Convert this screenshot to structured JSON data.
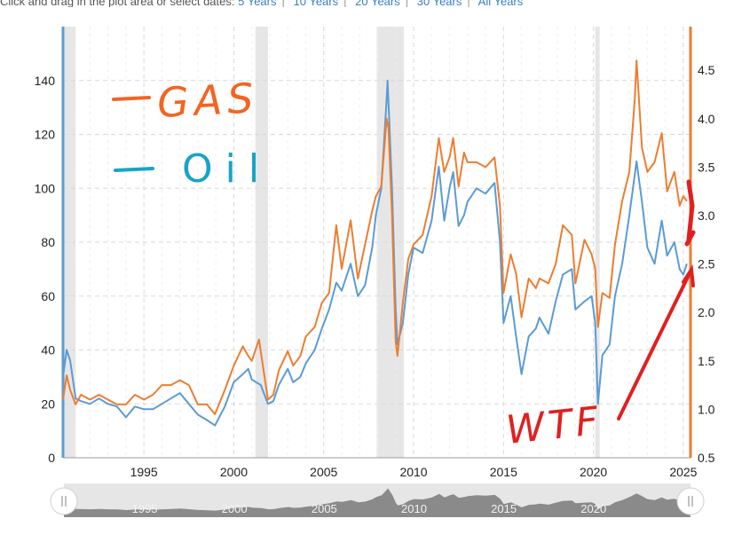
{
  "top_bar": {
    "instruction": "Click and drag in the plot area or select dates:",
    "ranges": [
      "5 Years",
      "10 Years",
      "20 Years",
      "30 Years",
      "All Years"
    ]
  },
  "annotations": {
    "gas_label": "GAS",
    "oil_label": "Oil",
    "wtf_label": "WTF",
    "gas_color": "#f26522",
    "oil_color": "#1aa3c6",
    "wtf_color": "#e02020"
  },
  "chart_data": {
    "type": "line",
    "title": "",
    "x_range": [
      1990.5,
      2025.4
    ],
    "left_axis": {
      "ticks": [
        0,
        20,
        40,
        60,
        80,
        100,
        120,
        140
      ],
      "range": [
        0,
        160
      ]
    },
    "right_axis": {
      "ticks": [
        0.5,
        1.0,
        1.5,
        2.0,
        2.5,
        3.0,
        3.5,
        4.0,
        4.5
      ],
      "range": [
        0.5,
        4.95
      ]
    },
    "x_ticks": [
      1995,
      2000,
      2005,
      2010,
      2015,
      2020,
      2025
    ],
    "recessions": [
      [
        1990.55,
        1991.2
      ],
      [
        2001.2,
        2001.9
      ],
      [
        2007.95,
        2009.45
      ],
      [
        2020.1,
        2020.35
      ]
    ],
    "series": [
      {
        "name": "",
        "axis": "left",
        "color": "#5b9bd5",
        "points": [
          [
            1990.5,
            30
          ],
          [
            1990.7,
            40
          ],
          [
            1990.9,
            36
          ],
          [
            1991.2,
            22
          ],
          [
            1991.5,
            21
          ],
          [
            1992,
            20
          ],
          [
            1992.5,
            22
          ],
          [
            1993,
            20
          ],
          [
            1993.5,
            19
          ],
          [
            1994,
            15
          ],
          [
            1994.5,
            19
          ],
          [
            1995,
            18
          ],
          [
            1995.5,
            18
          ],
          [
            1996,
            20
          ],
          [
            1996.5,
            22
          ],
          [
            1997,
            24
          ],
          [
            1997.5,
            20
          ],
          [
            1998,
            16
          ],
          [
            1998.5,
            14
          ],
          [
            1998.95,
            12
          ],
          [
            1999.5,
            19
          ],
          [
            2000,
            28
          ],
          [
            2000.5,
            31
          ],
          [
            2000.8,
            33
          ],
          [
            2001,
            29
          ],
          [
            2001.5,
            27
          ],
          [
            2001.9,
            20
          ],
          [
            2002.2,
            21
          ],
          [
            2002.5,
            27
          ],
          [
            2003,
            33
          ],
          [
            2003.3,
            28
          ],
          [
            2003.7,
            30
          ],
          [
            2004,
            35
          ],
          [
            2004.5,
            40
          ],
          [
            2004.9,
            48
          ],
          [
            2005.3,
            55
          ],
          [
            2005.7,
            65
          ],
          [
            2006,
            62
          ],
          [
            2006.5,
            72
          ],
          [
            2006.9,
            60
          ],
          [
            2007.3,
            64
          ],
          [
            2007.7,
            78
          ],
          [
            2007.9,
            90
          ],
          [
            2008.2,
            100
          ],
          [
            2008.5,
            133
          ],
          [
            2008.55,
            140
          ],
          [
            2008.8,
            100
          ],
          [
            2009,
            55
          ],
          [
            2009.1,
            42
          ],
          [
            2009.4,
            50
          ],
          [
            2009.7,
            68
          ],
          [
            2010,
            78
          ],
          [
            2010.5,
            76
          ],
          [
            2011,
            88
          ],
          [
            2011.4,
            108
          ],
          [
            2011.7,
            88
          ],
          [
            2012,
            100
          ],
          [
            2012.2,
            106
          ],
          [
            2012.5,
            86
          ],
          [
            2012.8,
            90
          ],
          [
            2013,
            95
          ],
          [
            2013.5,
            100
          ],
          [
            2014,
            98
          ],
          [
            2014.5,
            102
          ],
          [
            2014.8,
            80
          ],
          [
            2015,
            50
          ],
          [
            2015.4,
            60
          ],
          [
            2015.7,
            45
          ],
          [
            2016,
            31
          ],
          [
            2016.4,
            45
          ],
          [
            2016.8,
            48
          ],
          [
            2017,
            52
          ],
          [
            2017.5,
            46
          ],
          [
            2017.9,
            58
          ],
          [
            2018.3,
            68
          ],
          [
            2018.8,
            70
          ],
          [
            2019,
            55
          ],
          [
            2019.5,
            58
          ],
          [
            2019.9,
            60
          ],
          [
            2020.1,
            50
          ],
          [
            2020.25,
            20
          ],
          [
            2020.5,
            38
          ],
          [
            2020.9,
            42
          ],
          [
            2021.2,
            60
          ],
          [
            2021.6,
            72
          ],
          [
            2022,
            90
          ],
          [
            2022.4,
            110
          ],
          [
            2022.7,
            95
          ],
          [
            2023,
            78
          ],
          [
            2023.4,
            72
          ],
          [
            2023.8,
            88
          ],
          [
            2024.1,
            75
          ],
          [
            2024.5,
            80
          ],
          [
            2024.8,
            70
          ],
          [
            2025,
            68
          ],
          [
            2025.2,
            72
          ]
        ]
      },
      {
        "name": "",
        "axis": "right",
        "color": "#ed7d31",
        "points": [
          [
            1990.5,
            1.1
          ],
          [
            1990.7,
            1.35
          ],
          [
            1990.9,
            1.2
          ],
          [
            1991.2,
            1.05
          ],
          [
            1991.5,
            1.15
          ],
          [
            1992,
            1.1
          ],
          [
            1992.5,
            1.15
          ],
          [
            1993,
            1.1
          ],
          [
            1993.5,
            1.05
          ],
          [
            1994,
            1.05
          ],
          [
            1994.5,
            1.15
          ],
          [
            1995,
            1.1
          ],
          [
            1995.5,
            1.15
          ],
          [
            1996,
            1.25
          ],
          [
            1996.5,
            1.25
          ],
          [
            1997,
            1.3
          ],
          [
            1997.5,
            1.25
          ],
          [
            1998,
            1.05
          ],
          [
            1998.5,
            1.05
          ],
          [
            1998.95,
            0.95
          ],
          [
            1999.5,
            1.2
          ],
          [
            2000,
            1.45
          ],
          [
            2000.5,
            1.65
          ],
          [
            2000.8,
            1.55
          ],
          [
            2001,
            1.5
          ],
          [
            2001.4,
            1.72
          ],
          [
            2001.9,
            1.1
          ],
          [
            2002.2,
            1.15
          ],
          [
            2002.5,
            1.4
          ],
          [
            2003,
            1.6
          ],
          [
            2003.3,
            1.45
          ],
          [
            2003.7,
            1.55
          ],
          [
            2004,
            1.75
          ],
          [
            2004.5,
            1.85
          ],
          [
            2004.9,
            2.1
          ],
          [
            2005.3,
            2.2
          ],
          [
            2005.7,
            2.9
          ],
          [
            2006,
            2.45
          ],
          [
            2006.5,
            2.95
          ],
          [
            2006.9,
            2.35
          ],
          [
            2007.3,
            2.7
          ],
          [
            2007.7,
            3.05
          ],
          [
            2007.9,
            3.2
          ],
          [
            2008.2,
            3.3
          ],
          [
            2008.5,
            4.0
          ],
          [
            2008.6,
            3.9
          ],
          [
            2008.8,
            3.0
          ],
          [
            2009,
            1.7
          ],
          [
            2009.1,
            1.55
          ],
          [
            2009.4,
            2.1
          ],
          [
            2009.7,
            2.55
          ],
          [
            2010,
            2.7
          ],
          [
            2010.5,
            2.8
          ],
          [
            2011,
            3.2
          ],
          [
            2011.4,
            3.8
          ],
          [
            2011.7,
            3.45
          ],
          [
            2012,
            3.6
          ],
          [
            2012.2,
            3.8
          ],
          [
            2012.5,
            3.3
          ],
          [
            2012.8,
            3.65
          ],
          [
            2013,
            3.55
          ],
          [
            2013.5,
            3.55
          ],
          [
            2014,
            3.5
          ],
          [
            2014.5,
            3.6
          ],
          [
            2014.8,
            3.1
          ],
          [
            2015,
            2.2
          ],
          [
            2015.4,
            2.6
          ],
          [
            2015.7,
            2.4
          ],
          [
            2016,
            1.95
          ],
          [
            2016.4,
            2.35
          ],
          [
            2016.8,
            2.25
          ],
          [
            2017,
            2.35
          ],
          [
            2017.5,
            2.3
          ],
          [
            2017.9,
            2.5
          ],
          [
            2018.3,
            2.9
          ],
          [
            2018.8,
            2.8
          ],
          [
            2019,
            2.3
          ],
          [
            2019.5,
            2.75
          ],
          [
            2019.9,
            2.6
          ],
          [
            2020.1,
            2.45
          ],
          [
            2020.25,
            1.85
          ],
          [
            2020.5,
            2.2
          ],
          [
            2020.9,
            2.15
          ],
          [
            2021.2,
            2.7
          ],
          [
            2021.6,
            3.15
          ],
          [
            2022,
            3.45
          ],
          [
            2022.3,
            4.2
          ],
          [
            2022.4,
            4.6
          ],
          [
            2022.7,
            3.7
          ],
          [
            2023,
            3.45
          ],
          [
            2023.4,
            3.55
          ],
          [
            2023.8,
            3.85
          ],
          [
            2024.1,
            3.25
          ],
          [
            2024.5,
            3.45
          ],
          [
            2024.8,
            3.1
          ],
          [
            2025,
            3.2
          ],
          [
            2025.2,
            3.15
          ]
        ]
      }
    ],
    "navigator": {
      "x_ticks": [
        1995,
        2000,
        2005,
        2010,
        2015,
        2020
      ]
    }
  }
}
